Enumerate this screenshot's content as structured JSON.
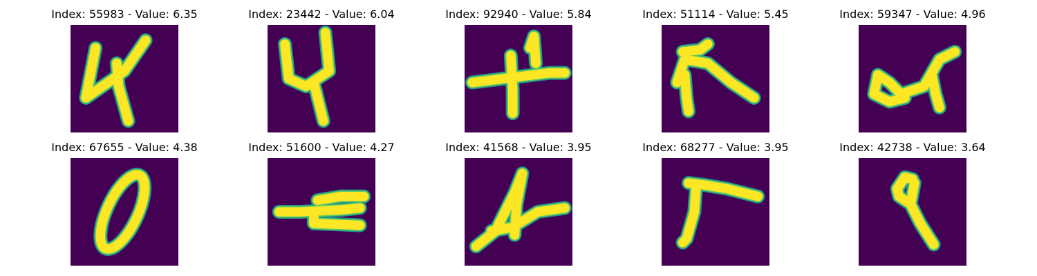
{
  "colors": {
    "background": "#440154",
    "stroke_edge": "#21908d",
    "stroke_mid": "#5ec962",
    "stroke_core": "#fde725"
  },
  "samples": [
    {
      "title": "Index: 55983 - Value: 6.35",
      "depicts": "digit 4"
    },
    {
      "title": "Index: 23442 - Value: 6.04",
      "depicts": "digit 4"
    },
    {
      "title": "Index: 92940 - Value: 5.84",
      "depicts": "digit 4"
    },
    {
      "title": "Index: 51114 - Value: 5.45",
      "depicts": "digit 4"
    },
    {
      "title": "Index: 59347 - Value: 4.96",
      "depicts": "digit 4"
    },
    {
      "title": "Index: 67655 - Value: 4.38",
      "depicts": "digit 0"
    },
    {
      "title": "Index: 51600 - Value: 4.27",
      "depicts": "digit 4"
    },
    {
      "title": "Index: 41568 - Value: 3.95",
      "depicts": "digit 4"
    },
    {
      "title": "Index: 68277 - Value: 3.95",
      "depicts": "digit 7"
    },
    {
      "title": "Index: 42738 - Value: 3.64",
      "depicts": "digit 9"
    }
  ]
}
